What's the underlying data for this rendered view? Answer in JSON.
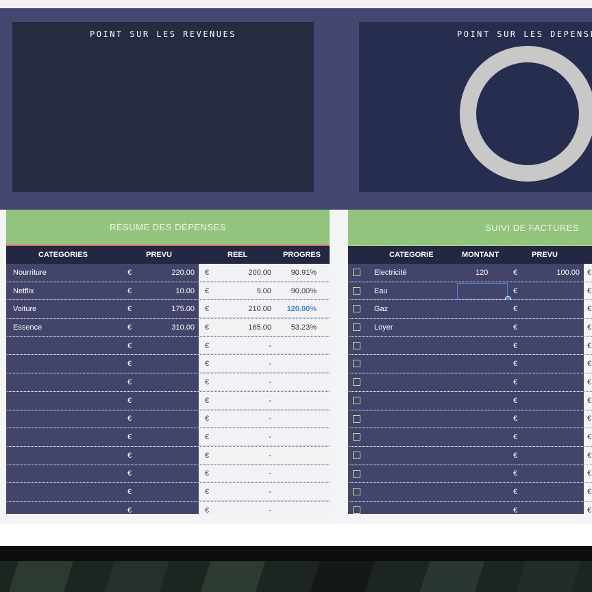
{
  "dashboard": {
    "revenue_panel_title": "POINT SUR LES REVENUES",
    "expense_panel_title": "POINT SUR LES DEPENSES"
  },
  "expense_summary": {
    "title": "RÉSUMÉ DES DÉPENSES",
    "headers": {
      "categories": "CATEGORIES",
      "prevu": "PREVU",
      "reel": "REEL",
      "progres": "PROGRES"
    },
    "currency": "€",
    "rows": [
      {
        "category": "Nourriture",
        "prevu": "220.00",
        "reel": "200.00",
        "progres": "90.91%"
      },
      {
        "category": "Netflix",
        "prevu": "10.00",
        "reel": "9.00",
        "progres": "90.00%"
      },
      {
        "category": "Voiture",
        "prevu": "175.00",
        "reel": "210.00",
        "progres": "120.00%"
      },
      {
        "category": "Essence",
        "prevu": "310.00",
        "reel": "165.00",
        "progres": "53.23%"
      },
      {
        "category": "",
        "prevu": "",
        "reel": "-",
        "progres": ""
      },
      {
        "category": "",
        "prevu": "",
        "reel": "-",
        "progres": ""
      },
      {
        "category": "",
        "prevu": "",
        "reel": "-",
        "progres": ""
      },
      {
        "category": "",
        "prevu": "",
        "reel": "-",
        "progres": ""
      },
      {
        "category": "",
        "prevu": "",
        "reel": "-",
        "progres": ""
      },
      {
        "category": "",
        "prevu": "",
        "reel": "-",
        "progres": ""
      },
      {
        "category": "",
        "prevu": "",
        "reel": "-",
        "progres": ""
      },
      {
        "category": "",
        "prevu": "",
        "reel": "-",
        "progres": ""
      },
      {
        "category": "",
        "prevu": "",
        "reel": "-",
        "progres": ""
      },
      {
        "category": "",
        "prevu": "",
        "reel": "-",
        "progres": ""
      }
    ]
  },
  "bills": {
    "title": "SUIVI DE FACTURES",
    "headers": {
      "categorie": "CATEGORIE",
      "montant": "MONTANT",
      "prevu": "PREVU"
    },
    "currency": "€",
    "rows": [
      {
        "categorie": "Electricité",
        "montant": "120",
        "prevu": "100.00"
      },
      {
        "categorie": "Eau",
        "montant": "",
        "prevu": ""
      },
      {
        "categorie": "Gaz",
        "montant": "",
        "prevu": ""
      },
      {
        "categorie": "Loyer",
        "montant": "",
        "prevu": ""
      },
      {
        "categorie": "",
        "montant": "",
        "prevu": ""
      },
      {
        "categorie": "",
        "montant": "",
        "prevu": ""
      },
      {
        "categorie": "",
        "montant": "",
        "prevu": ""
      },
      {
        "categorie": "",
        "montant": "",
        "prevu": ""
      },
      {
        "categorie": "",
        "montant": "",
        "prevu": ""
      },
      {
        "categorie": "",
        "montant": "",
        "prevu": ""
      },
      {
        "categorie": "",
        "montant": "",
        "prevu": ""
      },
      {
        "categorie": "",
        "montant": "",
        "prevu": ""
      },
      {
        "categorie": "",
        "montant": "",
        "prevu": ""
      },
      {
        "categorie": "",
        "montant": "",
        "prevu": ""
      }
    ]
  },
  "colors": {
    "band": "#454670",
    "panel": "#252b41",
    "header_green": "#93c47d",
    "navy_row": "#424469",
    "progress_over": "#4a86d0",
    "donut": "#c8c8c8"
  }
}
